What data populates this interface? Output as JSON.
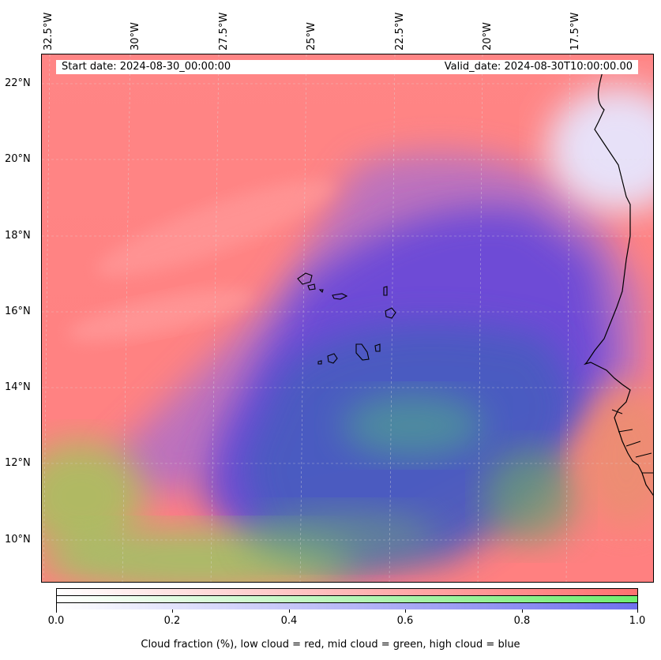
{
  "map": {
    "start_date": "Start date: 2024-08-30_00:00:00",
    "valid_date": "Valid_date: 2024-08-30T10:00:00.00",
    "longitude_labels": [
      "32.5°W",
      "30°W",
      "27.5°W",
      "25°W",
      "22.5°W",
      "20°W",
      "17.5°W"
    ],
    "latitude_labels": [
      "22°N",
      "20°N",
      "18°N",
      "16°N",
      "14°N",
      "12°N",
      "10°N"
    ],
    "layer_colors": {
      "low_cloud": "#ff7f7f",
      "mid_cloud": "#7fe07f",
      "high_cloud": "#6f5fe0",
      "clear": "#f4f4ff"
    }
  },
  "colorbar": {
    "ticks": [
      "0.0",
      "0.2",
      "0.4",
      "0.6",
      "0.8",
      "1.0"
    ],
    "label": "Cloud fraction (%), low cloud = red, mid cloud = green, high cloud = blue"
  }
}
